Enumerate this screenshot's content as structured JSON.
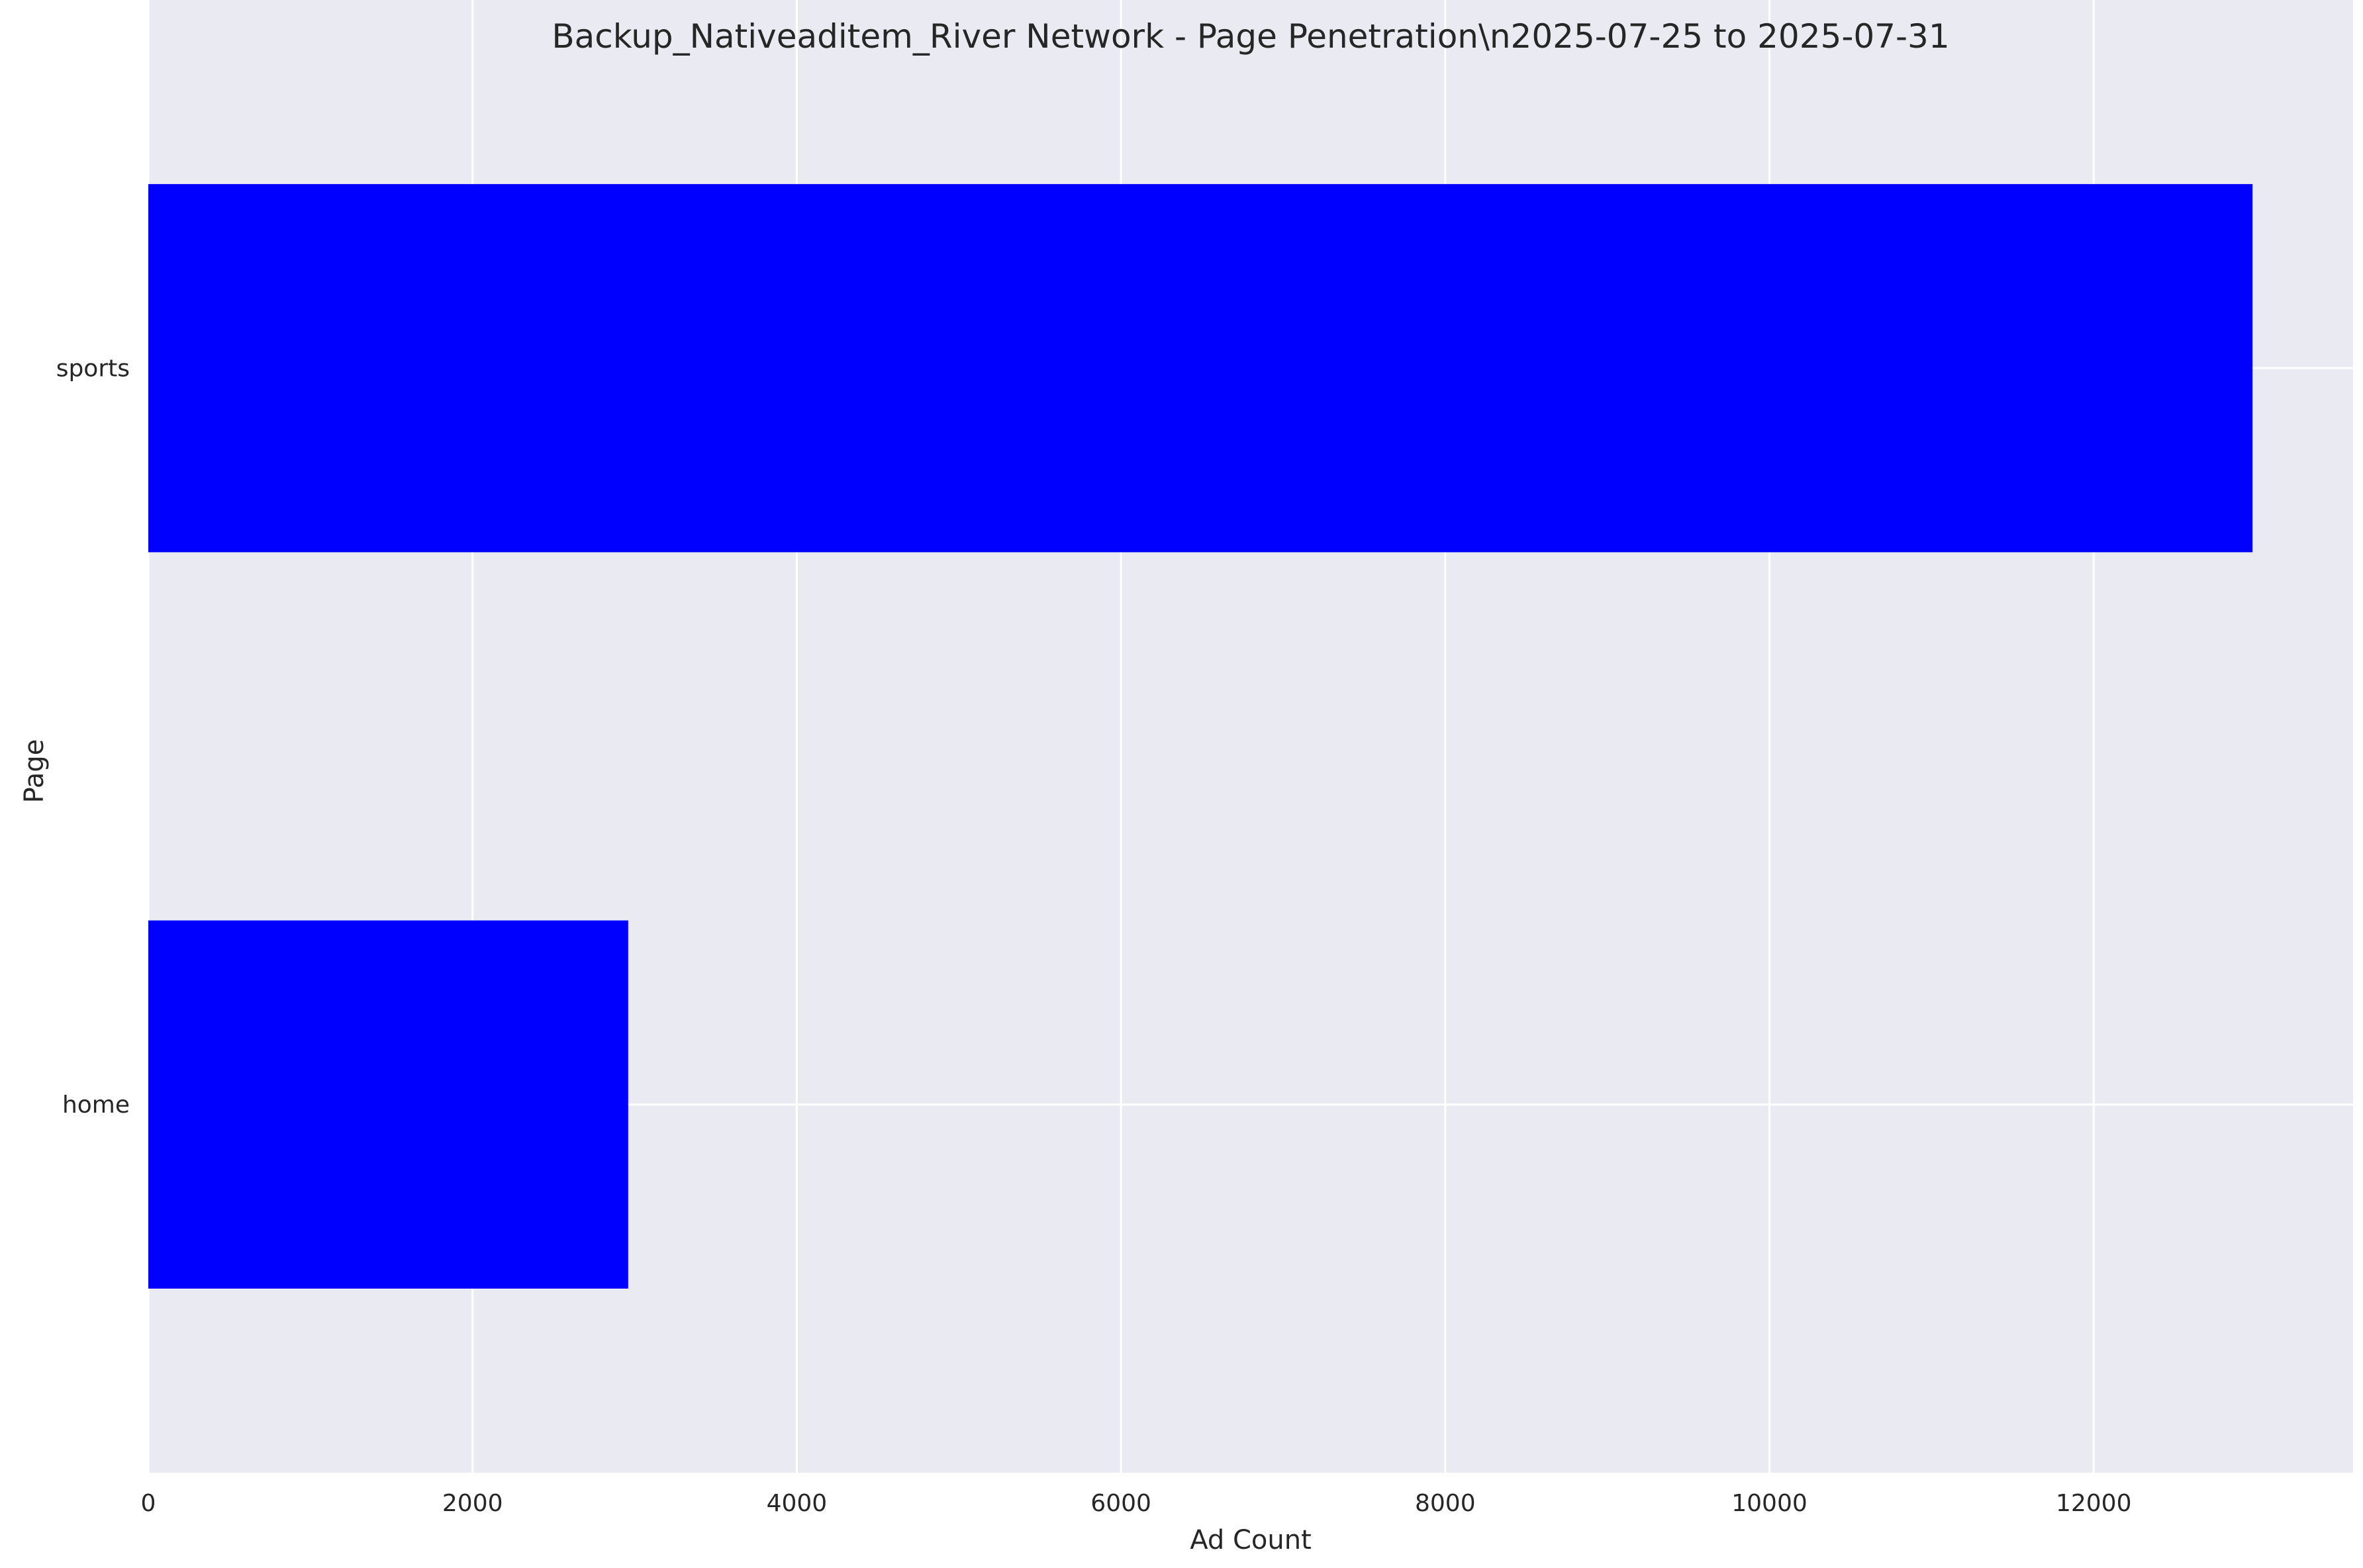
{
  "chart_data": {
    "type": "bar",
    "orientation": "horizontal",
    "title": "Backup_Nativeaditem_River Network - Page Penetration\\n2025-07-25 to 2025-07-31",
    "xlabel": "Ad Count",
    "ylabel": "Page",
    "categories": [
      "sports",
      "home"
    ],
    "values": [
      12980,
      2960
    ],
    "xlim": [
      0,
      13600
    ],
    "xticks": [
      0,
      2000,
      4000,
      6000,
      8000,
      10000,
      12000
    ],
    "xtick_labels": [
      "0",
      "2000",
      "4000",
      "6000",
      "8000",
      "10000",
      "12000"
    ],
    "grid": true,
    "legend": "none"
  },
  "colors": {
    "bar": "#0000ff",
    "plot_background": "#eaeaf2",
    "grid": "#ffffff",
    "text": "#262626"
  }
}
